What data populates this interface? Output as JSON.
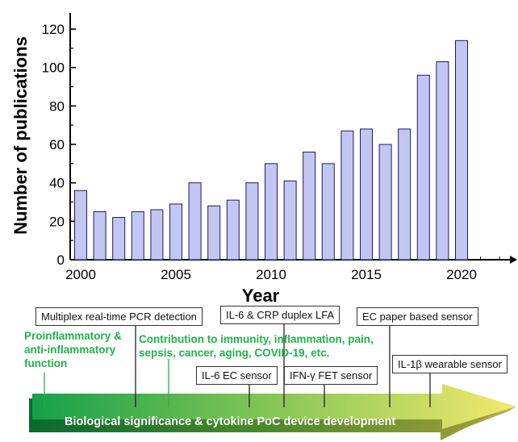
{
  "chart_data": {
    "type": "bar",
    "x": [
      2000,
      2001,
      2002,
      2003,
      2004,
      2005,
      2006,
      2007,
      2008,
      2009,
      2010,
      2011,
      2012,
      2013,
      2014,
      2015,
      2016,
      2017,
      2018,
      2019,
      2020
    ],
    "values": [
      36,
      25,
      22,
      25,
      26,
      29,
      40,
      28,
      31,
      40,
      50,
      41,
      56,
      50,
      67,
      68,
      60,
      68,
      96,
      103,
      114
    ],
    "xlabel": "Year",
    "ylabel": "Number of publications",
    "xticks": [
      "2000",
      "2005",
      "2010",
      "2015",
      "2020"
    ],
    "yticks": [
      "0",
      "20",
      "40",
      "60",
      "80",
      "100",
      "120"
    ],
    "ylim": [
      0,
      130
    ],
    "grid": false,
    "bar_color": "#c3c6f3"
  },
  "timeline": {
    "arrow_label": "Biological significance & cytokine PoC device development",
    "green_notes": [
      "Proinflammatory &\nanti-inflammatory\nfunction",
      "Contribution to immunity, inflammation, pain,\nsepsis, cancer, aging, COVID-19, etc."
    ],
    "milestones": [
      "Multiplex real-time PCR detection",
      "IL-6 & CRP duplex LFA",
      "EC paper based sensor",
      "IL-6 EC sensor",
      "IFN-γ FET sensor",
      "IL-1β wearable sensor"
    ],
    "colors": {
      "green": "#1fb34a",
      "arrow_start": "#1aa84a",
      "arrow_end": "#f2e86a"
    }
  }
}
